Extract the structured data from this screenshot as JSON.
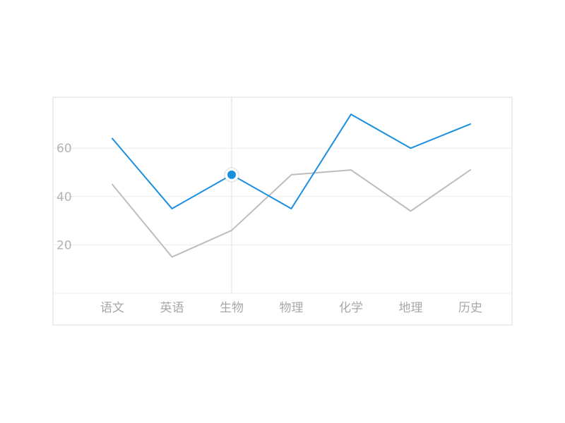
{
  "chart_data": {
    "type": "line",
    "title": "",
    "xlabel": "",
    "ylabel": "",
    "categories": [
      "语文",
      "英语",
      "生物",
      "物理",
      "化学",
      "地理",
      "历史"
    ],
    "y_ticks": [
      "20",
      "40",
      "60"
    ],
    "y_tick_values": [
      20,
      40,
      60
    ],
    "ylim": [
      0,
      80
    ],
    "grid": true,
    "legend": "none",
    "series": [
      {
        "values": [
          64,
          35,
          49,
          35,
          74,
          60,
          70
        ],
        "color": "#1a8fe0"
      },
      {
        "values": [
          45,
          15,
          26,
          49,
          51,
          34,
          51
        ],
        "color": "#bdbdbd"
      }
    ],
    "highlight": {
      "series_index": 0,
      "category_index": 2,
      "color": "#1a8fe0"
    }
  }
}
